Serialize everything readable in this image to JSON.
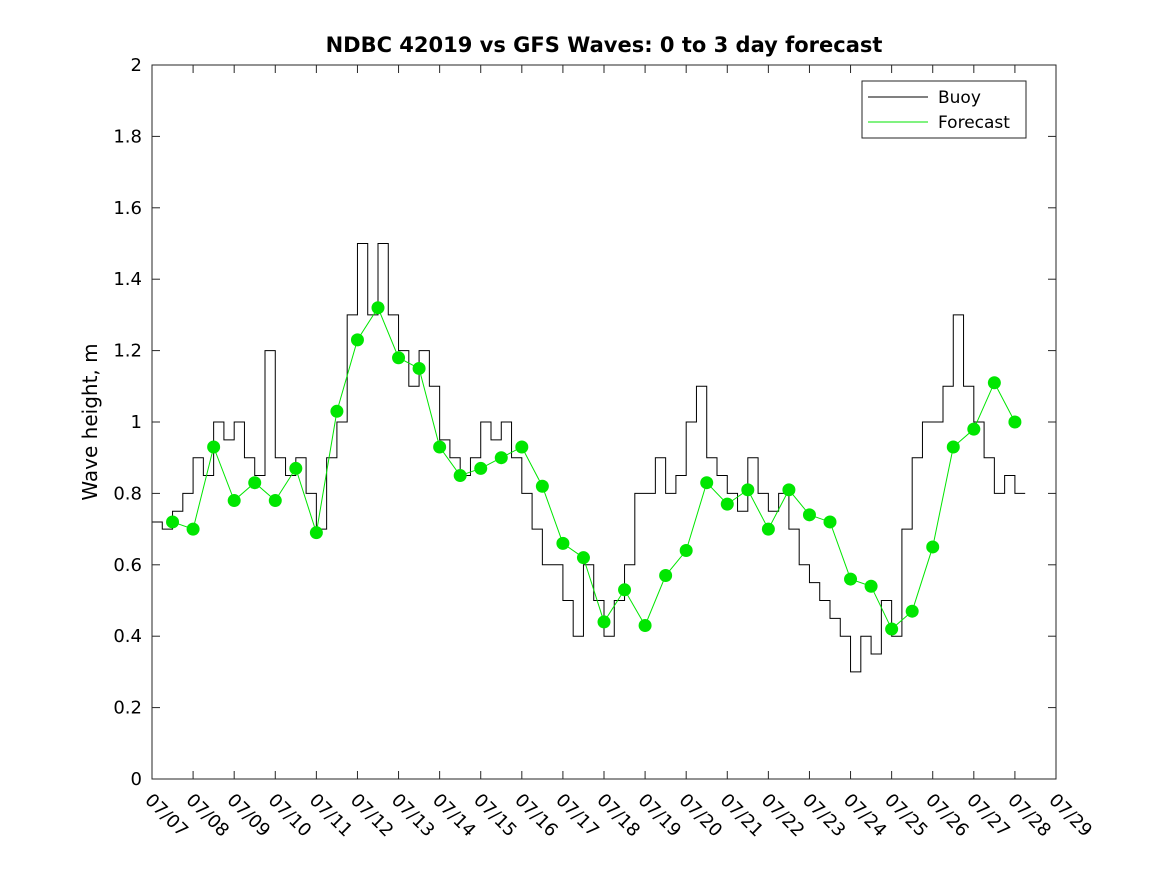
{
  "chart_data": {
    "type": "line",
    "title": "NDBC 42019 vs GFS Waves: 0 to 3 day forecast",
    "xlabel": "",
    "ylabel": "Wave height, m",
    "xlim": [
      0,
      22
    ],
    "ylim": [
      0,
      2
    ],
    "x_tick_labels": [
      "07/07",
      "07/08",
      "07/09",
      "07/10",
      "07/11",
      "07/12",
      "07/13",
      "07/14",
      "07/15",
      "07/16",
      "07/17",
      "07/18",
      "07/19",
      "07/20",
      "07/21",
      "07/22",
      "07/23",
      "07/24",
      "07/25",
      "07/26",
      "07/27",
      "07/28",
      "07/29"
    ],
    "y_tick_labels": [
      "0",
      "0.2",
      "0.4",
      "0.6",
      "0.8",
      "1",
      "1.2",
      "1.4",
      "1.6",
      "1.8",
      "2"
    ],
    "grid": false,
    "legend_position": "top-right",
    "legend": [
      {
        "label": "Buoy",
        "color": "#000000"
      },
      {
        "label": "Forecast",
        "color": "#00e600"
      }
    ],
    "series": [
      {
        "name": "Buoy",
        "color": "#000000",
        "x": [
          0,
          0.25,
          0.5,
          0.75,
          1,
          1.25,
          1.5,
          1.75,
          2,
          2.25,
          2.5,
          2.75,
          3,
          3.25,
          3.5,
          3.75,
          4,
          4.25,
          4.5,
          4.75,
          5,
          5.25,
          5.5,
          5.75,
          6,
          6.25,
          6.5,
          6.75,
          7,
          7.25,
          7.5,
          7.75,
          8,
          8.25,
          8.5,
          8.75,
          9,
          9.25,
          9.5,
          9.75,
          10,
          10.25,
          10.5,
          10.75,
          11,
          11.25,
          11.5,
          11.75,
          12,
          12.25,
          12.5,
          12.75,
          13,
          13.25,
          13.5,
          13.75,
          14,
          14.25,
          14.5,
          14.75,
          15,
          15.25,
          15.5,
          15.75,
          16,
          16.25,
          16.5,
          16.75,
          17,
          17.25,
          17.5,
          17.75,
          18,
          18.25,
          18.5,
          18.75,
          19,
          19.25,
          19.5,
          19.75,
          20,
          20.25,
          20.5,
          20.75,
          21,
          21.25
        ],
        "y": [
          0.72,
          0.7,
          0.75,
          0.8,
          0.9,
          0.85,
          1.0,
          0.95,
          1.0,
          0.9,
          0.85,
          1.2,
          0.9,
          0.85,
          0.9,
          0.8,
          0.7,
          0.9,
          1.0,
          1.3,
          1.5,
          1.3,
          1.5,
          1.3,
          1.2,
          1.1,
          1.2,
          1.1,
          0.95,
          0.9,
          0.85,
          0.9,
          1.0,
          0.95,
          1.0,
          0.9,
          0.8,
          0.7,
          0.6,
          0.6,
          0.5,
          0.4,
          0.6,
          0.5,
          0.4,
          0.5,
          0.6,
          0.8,
          0.8,
          0.9,
          0.8,
          0.85,
          1.0,
          1.1,
          0.9,
          0.85,
          0.8,
          0.75,
          0.9,
          0.8,
          0.75,
          0.8,
          0.7,
          0.6,
          0.55,
          0.5,
          0.45,
          0.4,
          0.3,
          0.4,
          0.35,
          0.5,
          0.4,
          0.7,
          0.9,
          1.0,
          1.0,
          1.1,
          1.3,
          1.1,
          1.0,
          0.9,
          0.8,
          0.85,
          0.8,
          0.8
        ]
      },
      {
        "name": "Forecast",
        "color": "#00e600",
        "x": [
          0.5,
          1,
          1.5,
          2,
          2.5,
          3,
          3.5,
          4,
          4.5,
          5,
          5.5,
          6,
          6.5,
          7,
          7.5,
          8,
          8.5,
          9,
          9.5,
          10,
          10.5,
          11,
          11.5,
          12,
          12.5,
          13,
          13.5,
          14,
          14.5,
          15,
          15.5,
          16,
          16.5,
          17,
          17.5,
          18,
          18.5,
          19,
          19.5,
          20,
          20.5,
          21
        ],
        "y": [
          0.72,
          0.7,
          0.93,
          0.78,
          0.83,
          0.78,
          0.87,
          0.69,
          1.03,
          1.23,
          1.32,
          1.18,
          1.15,
          0.93,
          0.85,
          0.87,
          0.9,
          0.93,
          0.82,
          0.66,
          0.62,
          0.44,
          0.53,
          0.43,
          0.57,
          0.64,
          0.83,
          0.77,
          0.81,
          0.7,
          0.81,
          0.74,
          0.72,
          0.56,
          0.54,
          0.42,
          0.47,
          0.65,
          0.93,
          0.98,
          1.11,
          1.0
        ]
      }
    ]
  }
}
